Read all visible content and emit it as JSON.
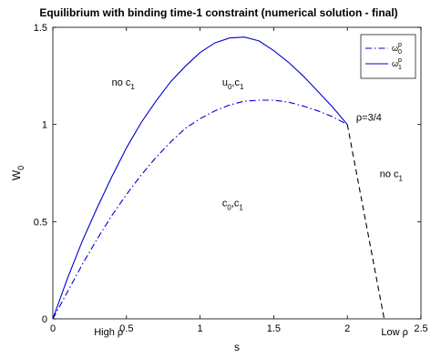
{
  "chart_data": {
    "type": "line",
    "title": "Equilibrium with binding time-1 constraint (numerical solution - final)",
    "xlabel": "s",
    "ylabel": "W",
    "ylabel_sub": "0",
    "xlim": [
      0,
      2.5
    ],
    "ylim": [
      0,
      1.5
    ],
    "xticks": [
      {
        "v": 0,
        "label": "0"
      },
      {
        "v": 0.5,
        "label": "0.5"
      },
      {
        "v": 1,
        "label": "1"
      },
      {
        "v": 1.5,
        "label": "1.5"
      },
      {
        "v": 2,
        "label": "2"
      },
      {
        "v": 2.5,
        "label": "2.5"
      }
    ],
    "yticks": [
      {
        "v": 0,
        "label": "0"
      },
      {
        "v": 0.5,
        "label": "0.5"
      },
      {
        "v": 1,
        "label": "1"
      },
      {
        "v": 1.5,
        "label": "1.5"
      }
    ],
    "grid": false,
    "legend_position": "top-right",
    "series": [
      {
        "name": "ω0p",
        "legend_base": "ω",
        "legend_sub": "0",
        "legend_sup": "p",
        "color": "#0000cc",
        "style": "dashdot",
        "x": [
          0,
          0.1,
          0.2,
          0.3,
          0.4,
          0.5,
          0.6,
          0.7,
          0.8,
          0.9,
          1.0,
          1.1,
          1.2,
          1.3,
          1.4,
          1.5,
          1.6,
          1.7,
          1.8,
          1.9,
          2.0
        ],
        "y": [
          0,
          0.14,
          0.28,
          0.41,
          0.53,
          0.64,
          0.74,
          0.83,
          0.91,
          0.98,
          1.03,
          1.07,
          1.1,
          1.12,
          1.125,
          1.125,
          1.115,
          1.095,
          1.07,
          1.04,
          1.0
        ]
      },
      {
        "name": "ω1p",
        "legend_base": "ω",
        "legend_sub": "1",
        "legend_sup": "p",
        "color": "#0000cc",
        "style": "solid",
        "x": [
          0,
          0.1,
          0.2,
          0.3,
          0.4,
          0.5,
          0.6,
          0.7,
          0.8,
          0.9,
          1.0,
          1.1,
          1.2,
          1.3,
          1.4,
          1.5,
          1.6,
          1.7,
          1.8,
          1.9,
          2.0
        ],
        "y": [
          0,
          0.21,
          0.4,
          0.57,
          0.73,
          0.88,
          1.01,
          1.12,
          1.22,
          1.3,
          1.37,
          1.42,
          1.445,
          1.45,
          1.43,
          1.38,
          1.32,
          1.25,
          1.17,
          1.09,
          1.0
        ]
      },
      {
        "color": "#000000",
        "style": "dashed",
        "x": [
          2.0,
          2.25
        ],
        "y": [
          1.0,
          0.0
        ]
      }
    ],
    "annotations": [
      {
        "id": "no-c1-left",
        "base": "no c",
        "sub": "1",
        "x": 0.4,
        "y": 1.2
      },
      {
        "id": "u0c1",
        "base": "u",
        "sub": "0",
        "mid": ",c",
        "sub2": "1",
        "x": 1.15,
        "y": 1.2
      },
      {
        "id": "rho-34",
        "base": "ρ=3/4",
        "x": 2.06,
        "y": 1.02
      },
      {
        "id": "no-c1-right",
        "base": "no c",
        "sub": "1",
        "x": 2.22,
        "y": 0.73
      },
      {
        "id": "c0c1",
        "base": "c",
        "sub": "0",
        "mid": ",c",
        "sub2": "1",
        "x": 1.15,
        "y": 0.58
      },
      {
        "id": "high-rho",
        "base": "High ρ",
        "x": 0.28,
        "y": -0.085
      },
      {
        "id": "low-rho",
        "base": "Low ρ",
        "x": 2.23,
        "y": -0.085
      }
    ]
  }
}
